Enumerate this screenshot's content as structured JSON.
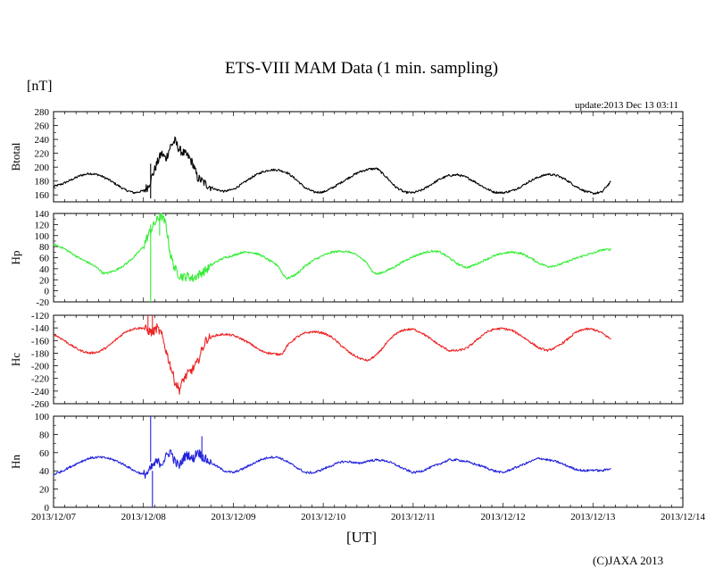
{
  "chart_data": {
    "type": "line",
    "title": "ETS-VIII MAM Data (1 min. sampling)",
    "unit": "[nT]",
    "update": "update:2013 Dec 13 03:11",
    "xlabel": "[UT]",
    "copyright": "(C)JAXA 2013",
    "x_ticks": [
      "2013/12/07",
      "2013/12/08",
      "2013/12/09",
      "2013/12/10",
      "2013/12/11",
      "2013/12/12",
      "2013/12/13",
      "2013/12/14"
    ],
    "x_range_days": [
      0,
      7
    ],
    "x_unit": "days since 2013/12/07 00:00 UT",
    "panels": [
      {
        "name": "Btotal",
        "color": "#000000",
        "ylim": [
          150,
          280
        ],
        "yticks": [
          160,
          180,
          200,
          220,
          240,
          260,
          280
        ],
        "points": [
          [
            0,
            172
          ],
          [
            0.1,
            176
          ],
          [
            0.2,
            182
          ],
          [
            0.3,
            188
          ],
          [
            0.4,
            191
          ],
          [
            0.5,
            189
          ],
          [
            0.6,
            183
          ],
          [
            0.7,
            175
          ],
          [
            0.8,
            167
          ],
          [
            0.9,
            163
          ],
          [
            1.0,
            166
          ],
          [
            1.05,
            172
          ],
          [
            1.1,
            188
          ],
          [
            1.15,
            205
          ],
          [
            1.2,
            220
          ],
          [
            1.25,
            212
          ],
          [
            1.3,
            230
          ],
          [
            1.35,
            238
          ],
          [
            1.4,
            225
          ],
          [
            1.45,
            220
          ],
          [
            1.5,
            215
          ],
          [
            1.55,
            205
          ],
          [
            1.6,
            185
          ],
          [
            1.7,
            175
          ],
          [
            1.8,
            168
          ],
          [
            1.9,
            165
          ],
          [
            2.0,
            168
          ],
          [
            2.1,
            176
          ],
          [
            2.2,
            185
          ],
          [
            2.3,
            192
          ],
          [
            2.4,
            196
          ],
          [
            2.5,
            196
          ],
          [
            2.6,
            192
          ],
          [
            2.7,
            182
          ],
          [
            2.8,
            170
          ],
          [
            2.9,
            164
          ],
          [
            3.0,
            164
          ],
          [
            3.1,
            170
          ],
          [
            3.2,
            178
          ],
          [
            3.3,
            186
          ],
          [
            3.4,
            193
          ],
          [
            3.5,
            197
          ],
          [
            3.6,
            198
          ],
          [
            3.7,
            186
          ],
          [
            3.8,
            172
          ],
          [
            3.9,
            164
          ],
          [
            4.0,
            163
          ],
          [
            4.1,
            167
          ],
          [
            4.2,
            175
          ],
          [
            4.3,
            183
          ],
          [
            4.4,
            188
          ],
          [
            4.5,
            189
          ],
          [
            4.6,
            185
          ],
          [
            4.7,
            178
          ],
          [
            4.8,
            170
          ],
          [
            4.9,
            164
          ],
          [
            5.0,
            163
          ],
          [
            5.1,
            166
          ],
          [
            5.2,
            172
          ],
          [
            5.3,
            180
          ],
          [
            5.4,
            186
          ],
          [
            5.5,
            190
          ],
          [
            5.6,
            188
          ],
          [
            5.7,
            182
          ],
          [
            5.8,
            173
          ],
          [
            5.9,
            166
          ],
          [
            6.0,
            162
          ],
          [
            6.1,
            164
          ],
          [
            6.15,
            172
          ],
          [
            6.2,
            179
          ]
        ]
      },
      {
        "name": "Hp",
        "color": "#33ee33",
        "ylim": [
          -20,
          140
        ],
        "yticks": [
          -20,
          0,
          20,
          40,
          60,
          80,
          100,
          120,
          140
        ],
        "points": [
          [
            0,
            84
          ],
          [
            0.1,
            78
          ],
          [
            0.2,
            68
          ],
          [
            0.3,
            58
          ],
          [
            0.4,
            50
          ],
          [
            0.5,
            40
          ],
          [
            0.55,
            32
          ],
          [
            0.6,
            32
          ],
          [
            0.7,
            38
          ],
          [
            0.8,
            48
          ],
          [
            0.9,
            62
          ],
          [
            1.0,
            80
          ],
          [
            1.05,
            100
          ],
          [
            1.1,
            115
          ],
          [
            1.15,
            128
          ],
          [
            1.2,
            136
          ],
          [
            1.25,
            120
          ],
          [
            1.3,
            65
          ],
          [
            1.35,
            40
          ],
          [
            1.4,
            28
          ],
          [
            1.45,
            25
          ],
          [
            1.5,
            27
          ],
          [
            1.55,
            22
          ],
          [
            1.6,
            28
          ],
          [
            1.7,
            38
          ],
          [
            1.8,
            52
          ],
          [
            1.9,
            60
          ],
          [
            2.0,
            64
          ],
          [
            2.1,
            70
          ],
          [
            2.2,
            70
          ],
          [
            2.3,
            65
          ],
          [
            2.4,
            55
          ],
          [
            2.5,
            45
          ],
          [
            2.55,
            30
          ],
          [
            2.6,
            22
          ],
          [
            2.7,
            30
          ],
          [
            2.8,
            45
          ],
          [
            2.9,
            56
          ],
          [
            3.0,
            64
          ],
          [
            3.1,
            70
          ],
          [
            3.2,
            72
          ],
          [
            3.3,
            70
          ],
          [
            3.4,
            62
          ],
          [
            3.5,
            48
          ],
          [
            3.55,
            34
          ],
          [
            3.6,
            30
          ],
          [
            3.7,
            36
          ],
          [
            3.8,
            44
          ],
          [
            3.9,
            54
          ],
          [
            4.0,
            62
          ],
          [
            4.1,
            68
          ],
          [
            4.2,
            72
          ],
          [
            4.3,
            70
          ],
          [
            4.4,
            60
          ],
          [
            4.5,
            48
          ],
          [
            4.6,
            42
          ],
          [
            4.7,
            48
          ],
          [
            4.8,
            56
          ],
          [
            4.9,
            63
          ],
          [
            5.0,
            68
          ],
          [
            5.1,
            70
          ],
          [
            5.2,
            68
          ],
          [
            5.3,
            60
          ],
          [
            5.4,
            50
          ],
          [
            5.5,
            44
          ],
          [
            5.6,
            46
          ],
          [
            5.7,
            52
          ],
          [
            5.8,
            58
          ],
          [
            5.9,
            64
          ],
          [
            6.0,
            68
          ],
          [
            6.1,
            74
          ],
          [
            6.2,
            75
          ]
        ]
      },
      {
        "name": "Hc",
        "color": "#ee2222",
        "ylim": [
          -260,
          -120
        ],
        "yticks": [
          -260,
          -240,
          -220,
          -200,
          -180,
          -160,
          -140,
          -120
        ],
        "points": [
          [
            0,
            -150
          ],
          [
            0.1,
            -158
          ],
          [
            0.2,
            -168
          ],
          [
            0.3,
            -176
          ],
          [
            0.4,
            -180
          ],
          [
            0.5,
            -178
          ],
          [
            0.6,
            -170
          ],
          [
            0.7,
            -158
          ],
          [
            0.8,
            -146
          ],
          [
            0.9,
            -141
          ],
          [
            1.0,
            -140
          ],
          [
            1.05,
            -144
          ],
          [
            1.1,
            -148
          ],
          [
            1.15,
            -140
          ],
          [
            1.2,
            -150
          ],
          [
            1.25,
            -175
          ],
          [
            1.3,
            -200
          ],
          [
            1.35,
            -225
          ],
          [
            1.4,
            -238
          ],
          [
            1.45,
            -220
          ],
          [
            1.5,
            -212
          ],
          [
            1.55,
            -205
          ],
          [
            1.6,
            -195
          ],
          [
            1.65,
            -175
          ],
          [
            1.7,
            -158
          ],
          [
            1.8,
            -152
          ],
          [
            1.9,
            -150
          ],
          [
            2.0,
            -152
          ],
          [
            2.1,
            -158
          ],
          [
            2.2,
            -166
          ],
          [
            2.3,
            -176
          ],
          [
            2.4,
            -180
          ],
          [
            2.5,
            -182
          ],
          [
            2.55,
            -180
          ],
          [
            2.6,
            -168
          ],
          [
            2.7,
            -155
          ],
          [
            2.8,
            -148
          ],
          [
            2.9,
            -146
          ],
          [
            3.0,
            -148
          ],
          [
            3.1,
            -155
          ],
          [
            3.2,
            -168
          ],
          [
            3.3,
            -180
          ],
          [
            3.4,
            -188
          ],
          [
            3.5,
            -192
          ],
          [
            3.6,
            -182
          ],
          [
            3.7,
            -165
          ],
          [
            3.8,
            -150
          ],
          [
            3.9,
            -143
          ],
          [
            4.0,
            -142
          ],
          [
            4.1,
            -148
          ],
          [
            4.2,
            -158
          ],
          [
            4.3,
            -168
          ],
          [
            4.4,
            -176
          ],
          [
            4.5,
            -176
          ],
          [
            4.6,
            -172
          ],
          [
            4.7,
            -160
          ],
          [
            4.8,
            -148
          ],
          [
            4.9,
            -142
          ],
          [
            5.0,
            -141
          ],
          [
            5.1,
            -144
          ],
          [
            5.2,
            -152
          ],
          [
            5.3,
            -162
          ],
          [
            5.4,
            -172
          ],
          [
            5.5,
            -176
          ],
          [
            5.6,
            -170
          ],
          [
            5.7,
            -160
          ],
          [
            5.8,
            -148
          ],
          [
            5.9,
            -142
          ],
          [
            6.0,
            -142
          ],
          [
            6.1,
            -148
          ],
          [
            6.2,
            -158
          ]
        ]
      },
      {
        "name": "Hn",
        "color": "#2222dd",
        "ylim": [
          0,
          100
        ],
        "yticks": [
          0,
          20,
          40,
          60,
          80,
          100
        ],
        "points": [
          [
            0,
            36
          ],
          [
            0.1,
            40
          ],
          [
            0.2,
            45
          ],
          [
            0.3,
            50
          ],
          [
            0.4,
            54
          ],
          [
            0.5,
            55
          ],
          [
            0.6,
            54
          ],
          [
            0.7,
            51
          ],
          [
            0.8,
            46
          ],
          [
            0.9,
            40
          ],
          [
            1.0,
            36
          ],
          [
            1.05,
            38
          ],
          [
            1.1,
            45
          ],
          [
            1.15,
            50
          ],
          [
            1.2,
            48
          ],
          [
            1.25,
            55
          ],
          [
            1.3,
            62
          ],
          [
            1.35,
            50
          ],
          [
            1.4,
            45
          ],
          [
            1.45,
            55
          ],
          [
            1.5,
            58
          ],
          [
            1.55,
            52
          ],
          [
            1.6,
            62
          ],
          [
            1.65,
            56
          ],
          [
            1.7,
            52
          ],
          [
            1.8,
            46
          ],
          [
            1.9,
            40
          ],
          [
            2.0,
            38
          ],
          [
            2.1,
            42
          ],
          [
            2.2,
            47
          ],
          [
            2.3,
            52
          ],
          [
            2.4,
            55
          ],
          [
            2.5,
            55
          ],
          [
            2.6,
            50
          ],
          [
            2.7,
            44
          ],
          [
            2.8,
            38
          ],
          [
            2.9,
            38
          ],
          [
            3.0,
            42
          ],
          [
            3.1,
            46
          ],
          [
            3.2,
            50
          ],
          [
            3.3,
            50
          ],
          [
            3.4,
            48
          ],
          [
            3.5,
            51
          ],
          [
            3.6,
            52
          ],
          [
            3.7,
            51
          ],
          [
            3.8,
            47
          ],
          [
            3.9,
            42
          ],
          [
            4.0,
            38
          ],
          [
            4.1,
            40
          ],
          [
            4.2,
            44
          ],
          [
            4.3,
            48
          ],
          [
            4.4,
            52
          ],
          [
            4.5,
            52
          ],
          [
            4.6,
            50
          ],
          [
            4.7,
            47
          ],
          [
            4.8,
            44
          ],
          [
            4.9,
            40
          ],
          [
            5.0,
            38
          ],
          [
            5.1,
            42
          ],
          [
            5.2,
            46
          ],
          [
            5.3,
            50
          ],
          [
            5.4,
            54
          ],
          [
            5.5,
            52
          ],
          [
            5.6,
            50
          ],
          [
            5.7,
            46
          ],
          [
            5.8,
            42
          ],
          [
            5.9,
            40
          ],
          [
            6.0,
            41
          ],
          [
            6.1,
            40
          ],
          [
            6.2,
            43
          ]
        ]
      }
    ],
    "spikes": [
      {
        "panel": "Btotal",
        "x": 1.08,
        "from": 205,
        "to": 155
      },
      {
        "panel": "Hp",
        "x": 1.08,
        "from": 120,
        "to": -20
      },
      {
        "panel": "Hp",
        "x": 1.18,
        "from": 140,
        "to": 100
      },
      {
        "panel": "Hc",
        "x": 1.05,
        "from": -150,
        "to": -120
      },
      {
        "panel": "Hc",
        "x": 1.1,
        "from": -145,
        "to": -120
      },
      {
        "panel": "Hn",
        "x": 1.08,
        "from": 50,
        "to": 100
      },
      {
        "panel": "Hn",
        "x": 1.1,
        "from": 40,
        "to": 0
      },
      {
        "panel": "Hn",
        "x": 1.65,
        "from": 55,
        "to": 78
      }
    ]
  }
}
